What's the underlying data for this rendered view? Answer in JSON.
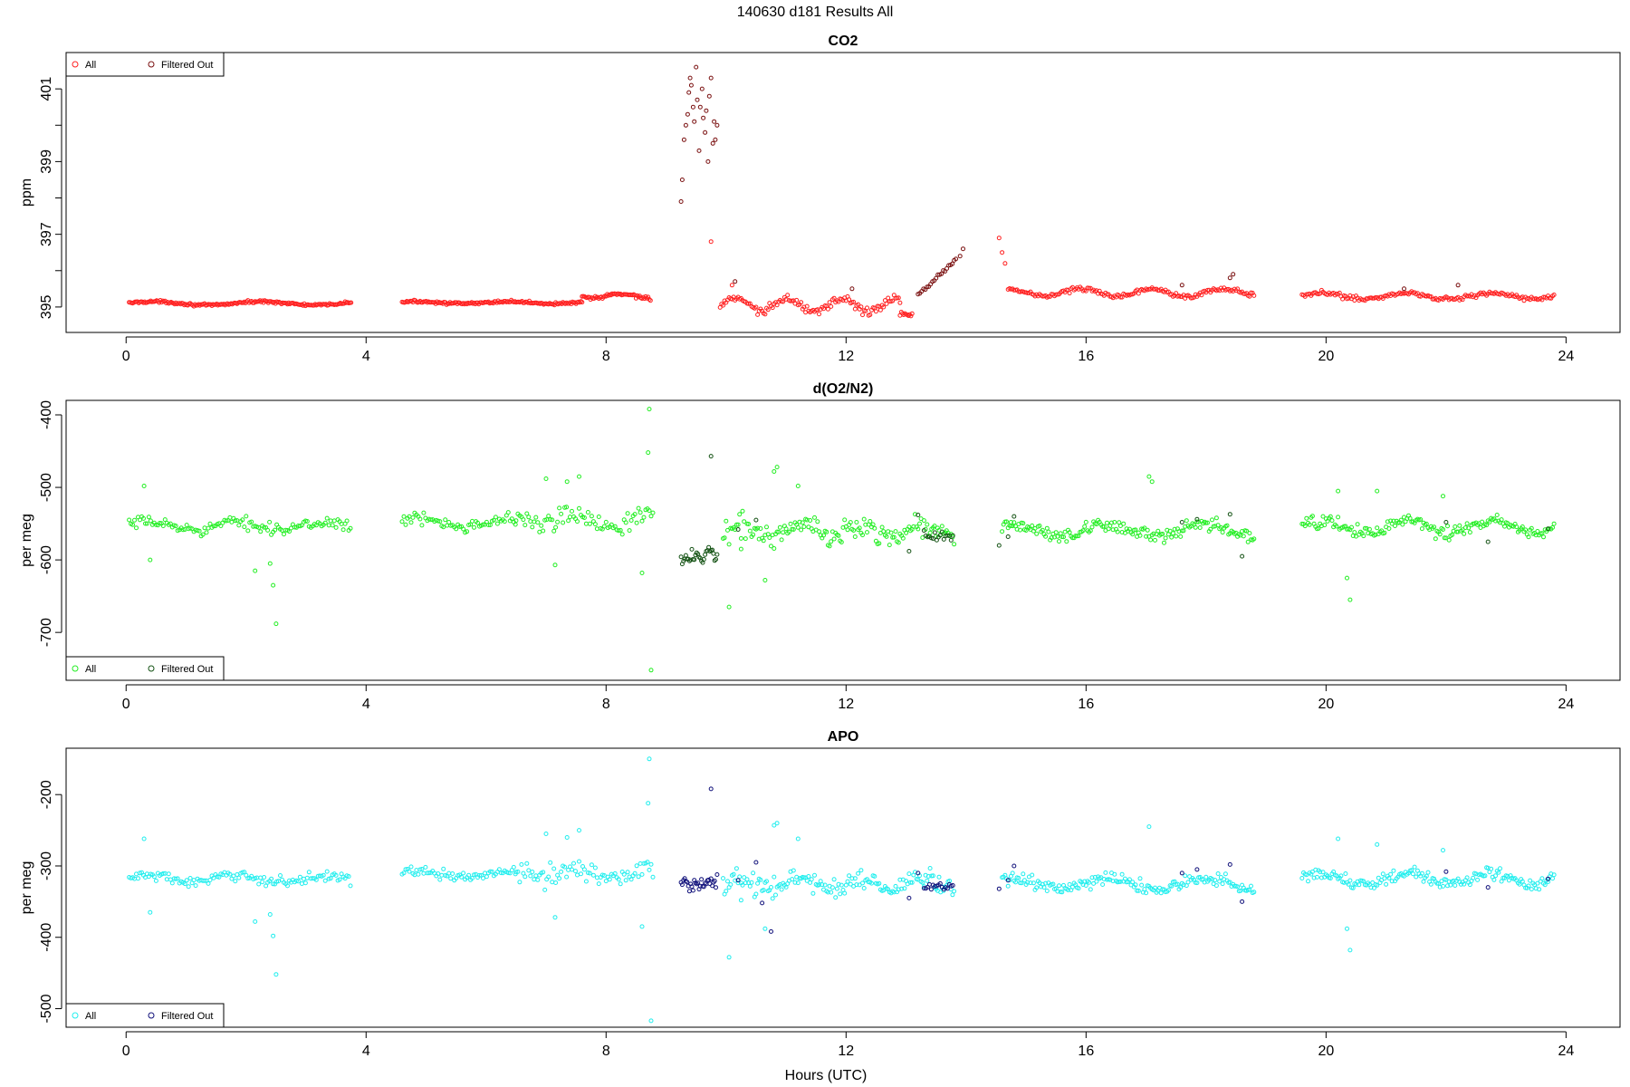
{
  "figure": {
    "main_title": "140630   d181   Results All",
    "xlabel": "Hours (UTC)"
  },
  "colors": {
    "co2_all": "#ff2020",
    "co2_filtered": "#7a1010",
    "o2n2_all": "#22ee22",
    "o2n2_filtered": "#145214",
    "apo_all": "#20eeee",
    "apo_filtered": "#10107a"
  },
  "chart_data": [
    {
      "type": "scatter",
      "title": "CO2",
      "ylabel": "ppm",
      "xlim": [
        -1,
        24.9
      ],
      "ylim": [
        394.3,
        402.0
      ],
      "x_ticks": [
        0,
        4,
        8,
        12,
        16,
        20,
        24
      ],
      "y_ticks": [
        395,
        396,
        397,
        398,
        399,
        400,
        401
      ],
      "y_tick_labels": [
        "395",
        "",
        "397",
        "",
        "399",
        "",
        "401"
      ],
      "grid": false,
      "legend": {
        "placement": "top-left",
        "entries": [
          "All",
          "Filtered Out"
        ]
      },
      "series": [
        {
          "name": "All",
          "color_key": "co2_all",
          "segments": [
            {
              "x_start": 0.05,
              "x_end": 3.75,
              "base": 395.1,
              "noise": 0.05,
              "wave_amp": 0.05,
              "wave_period": 1.8,
              "step": 0.02
            },
            {
              "x_start": 4.6,
              "x_end": 7.6,
              "base": 395.12,
              "noise": 0.05,
              "wave_amp": 0.03,
              "wave_period": 1.5,
              "step": 0.02
            },
            {
              "x_start": 7.6,
              "x_end": 8.75,
              "base": 395.3,
              "noise": 0.08,
              "wave_amp": 0.06,
              "wave_period": 1.0,
              "step": 0.02
            },
            {
              "x_start": 9.9,
              "x_end": 12.9,
              "base": 395.05,
              "noise": 0.18,
              "wave_amp": 0.18,
              "wave_period": 0.9,
              "step": 0.025
            },
            {
              "x_start": 12.9,
              "x_end": 13.1,
              "base": 394.8,
              "noise": 0.08,
              "wave_amp": 0.0,
              "wave_period": 1.0,
              "step": 0.02
            },
            {
              "x_start": 14.7,
              "x_end": 18.8,
              "base": 395.4,
              "noise": 0.1,
              "wave_amp": 0.1,
              "wave_period": 1.2,
              "step": 0.025
            },
            {
              "x_start": 19.6,
              "x_end": 23.8,
              "base": 395.3,
              "noise": 0.1,
              "wave_amp": 0.08,
              "wave_period": 1.4,
              "step": 0.025
            }
          ],
          "points": [
            [
              9.75,
              396.8
            ],
            [
              10.1,
              395.6
            ],
            [
              14.55,
              396.9
            ],
            [
              14.6,
              396.5
            ],
            [
              14.65,
              396.2
            ]
          ]
        },
        {
          "name": "Filtered Out",
          "color_key": "co2_filtered",
          "segments": [
            {
              "x_start": 13.2,
              "x_end": 13.85,
              "base": 395.3,
              "noise": 0.12,
              "wave_amp": 0.0,
              "wave_period": 1.0,
              "step": 0.03,
              "slope": 1.6
            }
          ],
          "points": [
            [
              9.25,
              397.9
            ],
            [
              9.27,
              398.5
            ],
            [
              9.3,
              399.6
            ],
            [
              9.33,
              400.0
            ],
            [
              9.36,
              400.3
            ],
            [
              9.38,
              400.9
            ],
            [
              9.4,
              401.3
            ],
            [
              9.42,
              401.1
            ],
            [
              9.45,
              400.5
            ],
            [
              9.47,
              400.1
            ],
            [
              9.5,
              401.6
            ],
            [
              9.52,
              400.7
            ],
            [
              9.55,
              399.3
            ],
            [
              9.57,
              400.5
            ],
            [
              9.6,
              401.0
            ],
            [
              9.62,
              400.2
            ],
            [
              9.65,
              399.8
            ],
            [
              9.67,
              400.4
            ],
            [
              9.7,
              399.0
            ],
            [
              9.72,
              400.8
            ],
            [
              9.75,
              401.3
            ],
            [
              9.78,
              399.5
            ],
            [
              9.8,
              400.1
            ],
            [
              9.82,
              399.6
            ],
            [
              9.85,
              400.0
            ],
            [
              13.9,
              396.4
            ],
            [
              13.95,
              396.6
            ],
            [
              18.4,
              395.8
            ],
            [
              18.45,
              395.9
            ],
            [
              17.6,
              395.6
            ],
            [
              21.3,
              395.5
            ],
            [
              22.2,
              395.6
            ],
            [
              12.1,
              395.5
            ],
            [
              10.15,
              395.7
            ]
          ]
        }
      ]
    },
    {
      "type": "scatter",
      "title": "d(O2/N2)",
      "ylabel": "per meg",
      "xlim": [
        -1,
        24.9
      ],
      "ylim": [
        -766,
        -380
      ],
      "x_ticks": [
        0,
        4,
        8,
        12,
        16,
        20,
        24
      ],
      "y_ticks": [
        -400,
        -500,
        -600,
        -700
      ],
      "y_tick_labels": [
        "-400",
        "-500",
        "-600",
        "-700"
      ],
      "grid": false,
      "legend": {
        "placement": "bottom-left",
        "entries": [
          "All",
          "Filtered Out"
        ]
      },
      "series": [
        {
          "name": "All",
          "color_key": "o2n2_all",
          "segments": [
            {
              "x_start": 0.05,
              "x_end": 3.75,
              "base": -553,
              "noise": 12,
              "wave_amp": 5,
              "wave_period": 1.5,
              "step": 0.03
            },
            {
              "x_start": 4.6,
              "x_end": 6.5,
              "base": -548,
              "noise": 12,
              "wave_amp": 4,
              "wave_period": 1.5,
              "step": 0.03
            },
            {
              "x_start": 6.5,
              "x_end": 8.8,
              "base": -545,
              "noise": 22,
              "wave_amp": 6,
              "wave_period": 1.2,
              "step": 0.03
            },
            {
              "x_start": 9.95,
              "x_end": 13.8,
              "base": -560,
              "noise": 24,
              "wave_amp": 8,
              "wave_period": 1.0,
              "step": 0.025
            },
            {
              "x_start": 14.6,
              "x_end": 18.8,
              "base": -560,
              "noise": 14,
              "wave_amp": 8,
              "wave_period": 1.6,
              "step": 0.025
            },
            {
              "x_start": 19.6,
              "x_end": 23.8,
              "base": -555,
              "noise": 14,
              "wave_amp": 8,
              "wave_period": 1.4,
              "step": 0.025
            }
          ],
          "points": [
            [
              0.3,
              -498
            ],
            [
              0.4,
              -600
            ],
            [
              2.15,
              -615
            ],
            [
              2.4,
              -605
            ],
            [
              2.45,
              -635
            ],
            [
              2.5,
              -688
            ],
            [
              7.0,
              -488
            ],
            [
              7.15,
              -607
            ],
            [
              7.35,
              -492
            ],
            [
              7.55,
              -485
            ],
            [
              8.6,
              -618
            ],
            [
              8.7,
              -452
            ],
            [
              8.72,
              -392
            ],
            [
              8.75,
              -752
            ],
            [
              10.05,
              -665
            ],
            [
              10.25,
              -585
            ],
            [
              10.65,
              -628
            ],
            [
              10.8,
              -478
            ],
            [
              10.85,
              -472
            ],
            [
              11.2,
              -498
            ],
            [
              14.75,
              -548
            ],
            [
              17.05,
              -485
            ],
            [
              17.1,
              -492
            ],
            [
              20.2,
              -505
            ],
            [
              20.35,
              -625
            ],
            [
              20.4,
              -655
            ],
            [
              20.85,
              -505
            ],
            [
              21.95,
              -512
            ]
          ]
        },
        {
          "name": "Filtered Out",
          "color_key": "o2n2_filtered",
          "segments": [
            {
              "x_start": 9.25,
              "x_end": 9.85,
              "base": -595,
              "noise": 18,
              "wave_amp": 0,
              "wave_period": 1.0,
              "step": 0.02
            },
            {
              "x_start": 13.3,
              "x_end": 13.8,
              "base": -568,
              "noise": 12,
              "wave_amp": 0,
              "wave_period": 1.0,
              "step": 0.03
            }
          ],
          "points": [
            [
              9.75,
              -457
            ],
            [
              10.2,
              -558
            ],
            [
              10.5,
              -545
            ],
            [
              13.2,
              -538
            ],
            [
              13.05,
              -588
            ],
            [
              14.55,
              -580
            ],
            [
              14.7,
              -568
            ],
            [
              14.8,
              -540
            ],
            [
              17.6,
              -548
            ],
            [
              17.85,
              -544
            ],
            [
              18.4,
              -537
            ],
            [
              18.6,
              -595
            ],
            [
              22.0,
              -548
            ],
            [
              22.7,
              -575
            ],
            [
              23.7,
              -557
            ]
          ]
        }
      ]
    },
    {
      "type": "scatter",
      "title": "APO",
      "ylabel": "per meg",
      "xlim": [
        -1,
        24.9
      ],
      "ylim": [
        -526,
        -135
      ],
      "x_ticks": [
        0,
        4,
        8,
        12,
        16,
        20,
        24
      ],
      "y_ticks": [
        -200,
        -300,
        -400,
        -500
      ],
      "y_tick_labels": [
        "-200",
        "-300",
        "-400",
        "-500"
      ],
      "grid": false,
      "legend": {
        "placement": "bottom-left",
        "entries": [
          "All",
          "Filtered Out"
        ]
      },
      "series": [
        {
          "name": "All",
          "color_key": "apo_all",
          "segments": [
            {
              "x_start": 0.05,
              "x_end": 3.75,
              "base": -318,
              "noise": 11,
              "wave_amp": 5,
              "wave_period": 1.5,
              "step": 0.03
            },
            {
              "x_start": 4.6,
              "x_end": 6.5,
              "base": -312,
              "noise": 10,
              "wave_amp": 4,
              "wave_period": 1.5,
              "step": 0.03
            },
            {
              "x_start": 6.5,
              "x_end": 8.8,
              "base": -310,
              "noise": 22,
              "wave_amp": 6,
              "wave_period": 1.2,
              "step": 0.03
            },
            {
              "x_start": 9.95,
              "x_end": 13.8,
              "base": -325,
              "noise": 22,
              "wave_amp": 8,
              "wave_period": 1.0,
              "step": 0.025
            },
            {
              "x_start": 14.6,
              "x_end": 18.8,
              "base": -325,
              "noise": 13,
              "wave_amp": 8,
              "wave_period": 1.6,
              "step": 0.025
            },
            {
              "x_start": 19.6,
              "x_end": 23.8,
              "base": -318,
              "noise": 13,
              "wave_amp": 8,
              "wave_period": 1.4,
              "step": 0.025
            }
          ],
          "points": [
            [
              0.3,
              -262
            ],
            [
              0.4,
              -365
            ],
            [
              2.15,
              -378
            ],
            [
              2.4,
              -368
            ],
            [
              2.45,
              -398
            ],
            [
              2.5,
              -452
            ],
            [
              7.0,
              -255
            ],
            [
              7.15,
              -372
            ],
            [
              7.35,
              -260
            ],
            [
              7.55,
              -250
            ],
            [
              8.6,
              -385
            ],
            [
              8.7,
              -212
            ],
            [
              8.72,
              -150
            ],
            [
              8.75,
              -517
            ],
            [
              10.05,
              -428
            ],
            [
              10.25,
              -348
            ],
            [
              10.65,
              -388
            ],
            [
              10.8,
              -243
            ],
            [
              10.85,
              -240
            ],
            [
              11.2,
              -262
            ],
            [
              17.05,
              -245
            ],
            [
              20.2,
              -262
            ],
            [
              20.35,
              -388
            ],
            [
              20.4,
              -418
            ],
            [
              20.85,
              -270
            ],
            [
              21.95,
              -278
            ]
          ]
        },
        {
          "name": "Filtered Out",
          "color_key": "apo_filtered",
          "segments": [
            {
              "x_start": 9.25,
              "x_end": 9.85,
              "base": -325,
              "noise": 16,
              "wave_amp": 0,
              "wave_period": 1.0,
              "step": 0.02
            },
            {
              "x_start": 13.3,
              "x_end": 13.8,
              "base": -330,
              "noise": 10,
              "wave_amp": 0,
              "wave_period": 1.0,
              "step": 0.03
            }
          ],
          "points": [
            [
              9.75,
              -192
            ],
            [
              10.2,
              -320
            ],
            [
              10.5,
              -295
            ],
            [
              10.6,
              -352
            ],
            [
              10.75,
              -392
            ],
            [
              13.2,
              -310
            ],
            [
              13.05,
              -345
            ],
            [
              14.55,
              -332
            ],
            [
              14.7,
              -320
            ],
            [
              14.8,
              -300
            ],
            [
              17.6,
              -310
            ],
            [
              17.85,
              -305
            ],
            [
              18.4,
              -298
            ],
            [
              18.6,
              -350
            ],
            [
              22.0,
              -308
            ],
            [
              22.7,
              -330
            ],
            [
              23.7,
              -318
            ]
          ]
        }
      ]
    }
  ]
}
